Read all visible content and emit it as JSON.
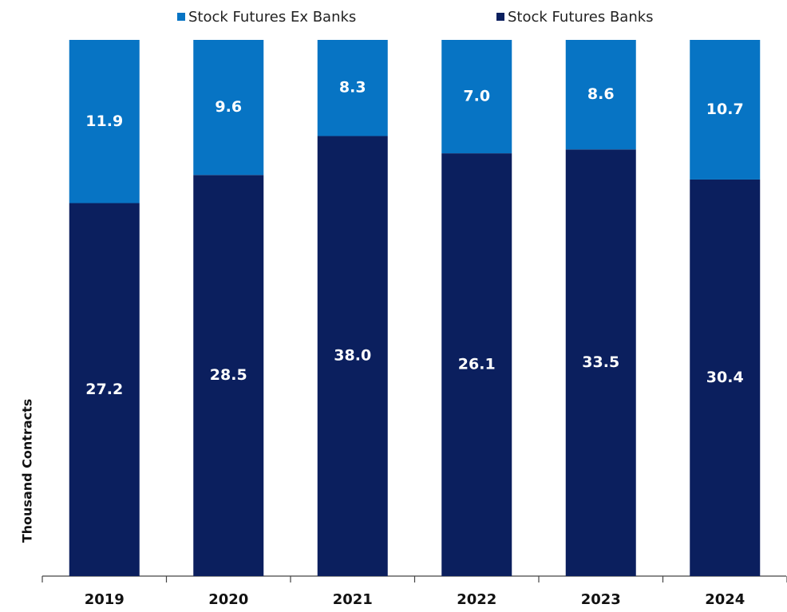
{
  "chart_data": {
    "type": "bar",
    "stacking": "percent",
    "y_axis_label": "Thousand Contracts",
    "categories": [
      "2019",
      "2020",
      "2021",
      "2022",
      "2023",
      "2024"
    ],
    "series": [
      {
        "name": "Stock Futures Banks",
        "color": "#0b1f5e",
        "values": [
          27.2,
          28.5,
          38.0,
          26.1,
          33.5,
          30.4
        ],
        "value_labels": [
          "27.2",
          "28.5",
          "38.0",
          "26.1",
          "33.5",
          "30.4"
        ]
      },
      {
        "name": "Stock Futures Ex Banks",
        "color": "#0774c4",
        "values": [
          11.9,
          9.6,
          8.3,
          7.0,
          8.6,
          10.7
        ],
        "value_labels": [
          "11.9",
          "9.6",
          "8.3",
          "7.0",
          "8.6",
          "10.7"
        ]
      }
    ],
    "legend": "top"
  }
}
